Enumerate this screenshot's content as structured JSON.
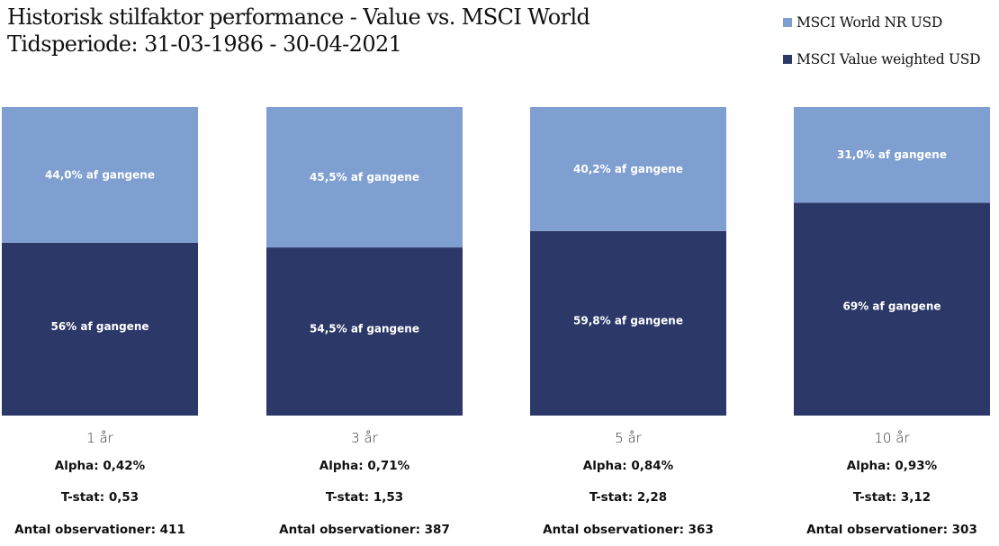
{
  "chart_data": {
    "type": "bar",
    "stacked": true,
    "title": "Historisk stilfaktor performance - Value vs. MSCI World",
    "subtitle": "Tidsperiode: 31-03-1986 - 30-04-2021",
    "categories": [
      "1 år",
      "3 år",
      "5 år",
      "10 år"
    ],
    "ylim": [
      0,
      100
    ],
    "legend_position": "top-right",
    "series": [
      {
        "name": "MSCI Value weighted USD",
        "color": "#2b3868",
        "values": [
          56.0,
          54.5,
          59.8,
          69.0
        ],
        "labels": [
          "56% af gangene",
          "54,5% af gangene",
          "59,8% af gangene",
          "69% af gangene"
        ]
      },
      {
        "name": "MSCI World NR USD",
        "color": "#7f9fd1",
        "values": [
          44.0,
          45.5,
          40.2,
          31.0
        ],
        "labels": [
          "44,0% af gangene",
          "45,5% af gangene",
          "40,2% af gangene",
          "31,0% af gangene"
        ]
      }
    ],
    "stats": [
      {
        "alpha": "Alpha: 0,42%",
        "tstat": "T-stat: 0,53",
        "obs": "Antal observationer: 411"
      },
      {
        "alpha": "Alpha: 0,71%",
        "tstat": "T-stat: 1,53",
        "obs": "Antal observationer: 387"
      },
      {
        "alpha": "Alpha: 0,84%",
        "tstat": "T-stat: 2,28",
        "obs": "Antal observationer: 363"
      },
      {
        "alpha": "Alpha: 0,93%",
        "tstat": "T-stat: 3,12",
        "obs": "Antal observationer: 303"
      }
    ]
  },
  "legend": [
    {
      "label": "MSCI World NR USD",
      "color": "#7f9fd1"
    },
    {
      "label": "MSCI Value weighted USD",
      "color": "#2b3868"
    }
  ]
}
